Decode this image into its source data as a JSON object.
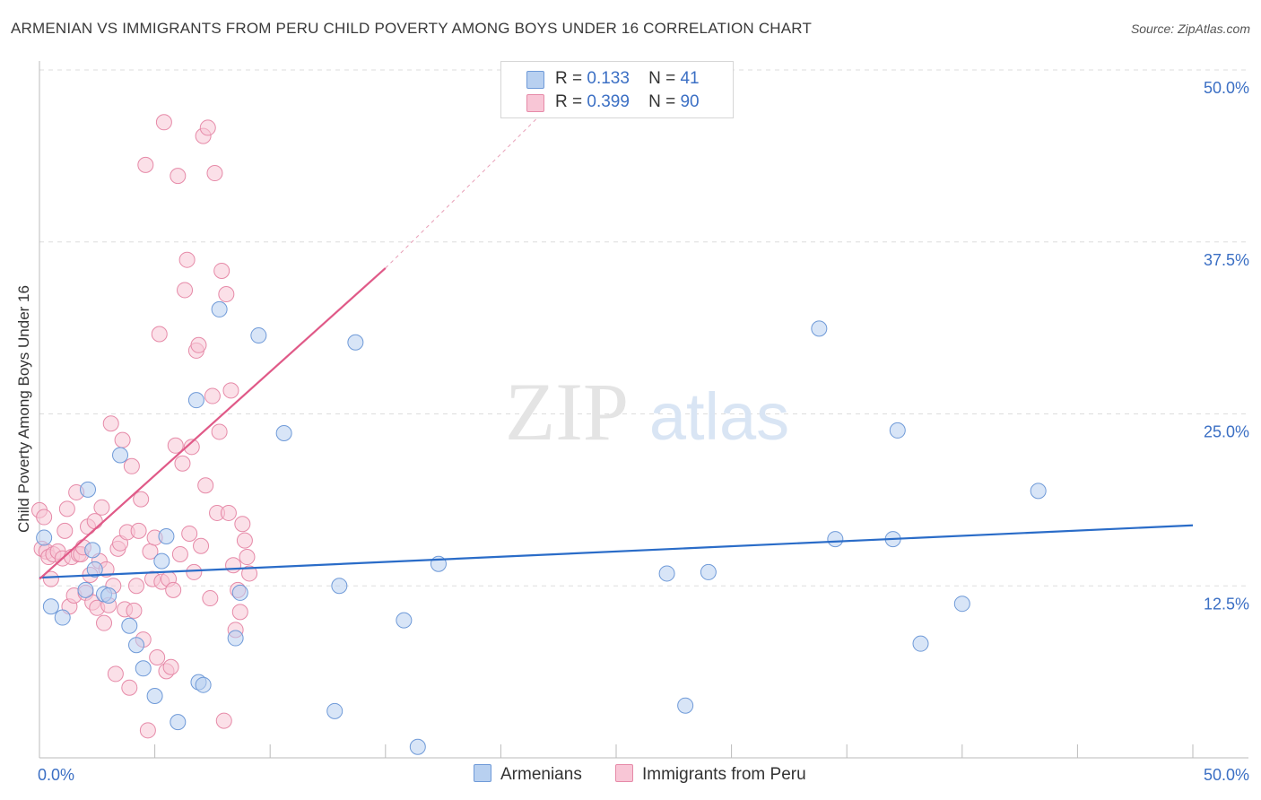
{
  "title": "ARMENIAN VS IMMIGRANTS FROM PERU CHILD POVERTY AMONG BOYS UNDER 16 CORRELATION CHART",
  "source": "Source: ZipAtlas.com",
  "watermark": {
    "zip": "ZIP",
    "atlas": "atlas"
  },
  "legend_top": [
    {
      "r_label": "R =",
      "r_value": "0.133",
      "n_label": "N =",
      "n_value": "41"
    },
    {
      "r_label": "R =",
      "r_value": "0.399",
      "n_label": "N =",
      "n_value": "90"
    }
  ],
  "colors": {
    "armenians_fill": "#b8d0f0",
    "armenians_stroke": "#6f9ad8",
    "armenians_line": "#2a6cc8",
    "peru_fill": "#f8c6d6",
    "peru_stroke": "#e68aa8",
    "peru_line": "#e05a88",
    "axis_text": "#3b6fc4",
    "grid": "#dddddd"
  },
  "chart_data": {
    "type": "scatter",
    "title": "ARMENIAN VS IMMIGRANTS FROM PERU CHILD POVERTY AMONG BOYS UNDER 16 CORRELATION CHART",
    "xlabel": "",
    "ylabel": "Child Poverty Among Boys Under 16",
    "xlim": [
      0,
      50
    ],
    "ylim": [
      0,
      50
    ],
    "x_tick_labels": [
      {
        "value": 0,
        "label": "0.0%"
      },
      {
        "value": 50,
        "label": "50.0%"
      }
    ],
    "y_tick_labels": [
      {
        "value": 12.5,
        "label": "12.5%"
      },
      {
        "value": 25,
        "label": "25.0%"
      },
      {
        "value": 37.5,
        "label": "37.5%"
      },
      {
        "value": 50,
        "label": "50.0%"
      }
    ],
    "series": [
      {
        "name": "Armenians",
        "r": 0.133,
        "n": 41,
        "trend": {
          "x0": 0,
          "y0": 13.1,
          "x1": 50,
          "y1": 16.9
        },
        "points": [
          [
            0.2,
            16.0
          ],
          [
            0.5,
            11.0
          ],
          [
            1.0,
            10.2
          ],
          [
            2.0,
            12.2
          ],
          [
            2.1,
            19.5
          ],
          [
            2.3,
            15.1
          ],
          [
            2.4,
            13.7
          ],
          [
            2.8,
            11.9
          ],
          [
            3.0,
            11.8
          ],
          [
            3.5,
            22.0
          ],
          [
            3.9,
            9.6
          ],
          [
            4.2,
            8.2
          ],
          [
            4.5,
            6.5
          ],
          [
            5.0,
            4.5
          ],
          [
            5.3,
            14.3
          ],
          [
            5.5,
            16.1
          ],
          [
            6.0,
            2.6
          ],
          [
            6.8,
            26.0
          ],
          [
            6.9,
            5.5
          ],
          [
            7.1,
            5.3
          ],
          [
            7.8,
            32.6
          ],
          [
            8.5,
            8.7
          ],
          [
            8.7,
            12.0
          ],
          [
            9.5,
            30.7
          ],
          [
            10.6,
            23.6
          ],
          [
            12.8,
            3.4
          ],
          [
            13.0,
            12.5
          ],
          [
            13.7,
            30.2
          ],
          [
            15.8,
            10.0
          ],
          [
            16.4,
            0.8
          ],
          [
            17.3,
            14.1
          ],
          [
            27.2,
            13.4
          ],
          [
            28.0,
            3.8
          ],
          [
            29.0,
            13.5
          ],
          [
            33.8,
            31.2
          ],
          [
            34.5,
            15.9
          ],
          [
            37.0,
            15.9
          ],
          [
            37.2,
            23.8
          ],
          [
            38.2,
            8.3
          ],
          [
            40.0,
            11.2
          ],
          [
            43.3,
            19.4
          ]
        ]
      },
      {
        "name": "Immigrants from Peru",
        "r": 0.399,
        "n": 90,
        "trend": {
          "x0": 0,
          "y0": 13.0,
          "x1": 15,
          "y1": 35.6
        },
        "trend_extension": {
          "x0": 15,
          "y0": 35.6,
          "x1": 22,
          "y1": 47.2
        },
        "points": [
          [
            0.0,
            18.0
          ],
          [
            0.1,
            15.2
          ],
          [
            0.2,
            17.5
          ],
          [
            0.3,
            15.0
          ],
          [
            0.4,
            14.6
          ],
          [
            0.5,
            13.0
          ],
          [
            0.6,
            14.8
          ],
          [
            0.8,
            15.0
          ],
          [
            1.0,
            14.5
          ],
          [
            1.1,
            16.5
          ],
          [
            1.2,
            18.1
          ],
          [
            1.3,
            11.0
          ],
          [
            1.4,
            14.6
          ],
          [
            1.5,
            11.8
          ],
          [
            1.6,
            19.3
          ],
          [
            1.7,
            14.8
          ],
          [
            1.8,
            14.8
          ],
          [
            1.9,
            15.3
          ],
          [
            2.0,
            12.0
          ],
          [
            2.1,
            16.8
          ],
          [
            2.2,
            13.3
          ],
          [
            2.3,
            11.3
          ],
          [
            2.4,
            17.2
          ],
          [
            2.5,
            10.9
          ],
          [
            2.6,
            14.3
          ],
          [
            2.7,
            18.2
          ],
          [
            2.8,
            9.8
          ],
          [
            2.9,
            13.7
          ],
          [
            3.0,
            11.1
          ],
          [
            3.1,
            24.3
          ],
          [
            3.2,
            12.5
          ],
          [
            3.3,
            6.1
          ],
          [
            3.4,
            15.2
          ],
          [
            3.5,
            15.6
          ],
          [
            3.6,
            23.1
          ],
          [
            3.7,
            10.8
          ],
          [
            3.8,
            16.4
          ],
          [
            3.9,
            5.1
          ],
          [
            4.0,
            21.2
          ],
          [
            4.1,
            10.7
          ],
          [
            4.2,
            12.5
          ],
          [
            4.3,
            16.5
          ],
          [
            4.4,
            18.8
          ],
          [
            4.5,
            8.6
          ],
          [
            4.6,
            43.1
          ],
          [
            4.7,
            2.0
          ],
          [
            4.8,
            15.0
          ],
          [
            4.9,
            13.0
          ],
          [
            5.0,
            16.0
          ],
          [
            5.1,
            7.3
          ],
          [
            5.2,
            30.8
          ],
          [
            5.3,
            12.8
          ],
          [
            5.4,
            46.2
          ],
          [
            5.5,
            6.3
          ],
          [
            5.6,
            13.0
          ],
          [
            5.7,
            6.6
          ],
          [
            5.8,
            12.2
          ],
          [
            5.9,
            22.7
          ],
          [
            6.0,
            42.3
          ],
          [
            6.1,
            14.8
          ],
          [
            6.2,
            21.4
          ],
          [
            6.3,
            34.0
          ],
          [
            6.4,
            36.2
          ],
          [
            6.5,
            16.3
          ],
          [
            6.6,
            22.6
          ],
          [
            6.7,
            13.5
          ],
          [
            6.8,
            29.6
          ],
          [
            6.9,
            30.0
          ],
          [
            7.0,
            15.4
          ],
          [
            7.1,
            45.2
          ],
          [
            7.2,
            19.8
          ],
          [
            7.3,
            45.8
          ],
          [
            7.4,
            11.6
          ],
          [
            7.5,
            26.3
          ],
          [
            7.6,
            42.5
          ],
          [
            7.7,
            17.8
          ],
          [
            7.8,
            23.7
          ],
          [
            7.9,
            35.4
          ],
          [
            8.0,
            2.7
          ],
          [
            8.1,
            33.7
          ],
          [
            8.2,
            17.8
          ],
          [
            8.3,
            26.7
          ],
          [
            8.4,
            14.0
          ],
          [
            8.5,
            9.3
          ],
          [
            8.6,
            12.2
          ],
          [
            8.7,
            10.6
          ],
          [
            8.8,
            17.0
          ],
          [
            8.9,
            15.8
          ],
          [
            9.0,
            14.6
          ],
          [
            9.1,
            13.4
          ]
        ]
      }
    ]
  },
  "bottom_legend": [
    {
      "label": "Armenians"
    },
    {
      "label": "Immigrants from Peru"
    }
  ]
}
